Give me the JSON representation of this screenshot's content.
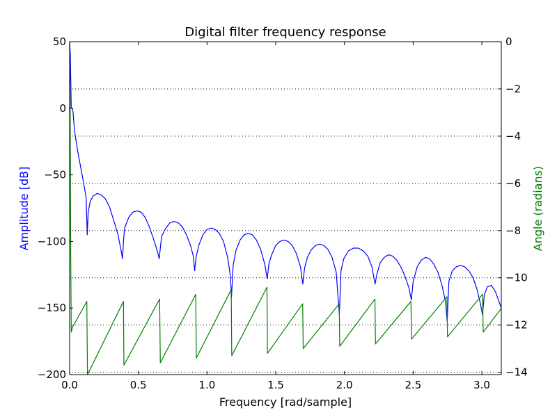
{
  "chart_data": {
    "type": "line",
    "title": "Digital filter frequency response",
    "xlabel": "Frequency [rad/sample]",
    "ylabel": "Amplitude [dB]",
    "ylabel_right": "Angle (radians)",
    "xlim": [
      0,
      3.1416
    ],
    "ylim": [
      -200,
      50
    ],
    "ylim_right": [
      -14.1,
      0
    ],
    "x_ticks": [
      "0.0",
      "0.5",
      "1.0",
      "1.5",
      "2.0",
      "2.5",
      "3.0"
    ],
    "y_ticks": [
      "50",
      "0",
      "−50",
      "−100",
      "−150",
      "−200"
    ],
    "y_ticks_right": [
      "0",
      "−2",
      "−4",
      "−6",
      "−8",
      "−10",
      "−12",
      "−14"
    ],
    "grid": "right-axis horizontal dotted",
    "colors": {
      "amplitude": "#0000ff",
      "angle": "#008000",
      "axes": "#000000",
      "grid": "#000000"
    },
    "series": [
      {
        "axis": "left",
        "color": "#0000ff",
        "x": [
          0.0,
          0.005,
          0.012,
          0.02,
          0.025,
          0.03,
          0.04,
          0.06,
          0.08,
          0.1,
          0.12,
          0.128,
          0.135,
          0.15,
          0.17,
          0.2,
          0.23,
          0.26,
          0.29,
          0.32,
          0.35,
          0.375,
          0.385,
          0.392,
          0.4,
          0.43,
          0.46,
          0.49,
          0.52,
          0.55,
          0.58,
          0.61,
          0.64,
          0.652,
          0.662,
          0.67,
          0.7,
          0.73,
          0.76,
          0.79,
          0.82,
          0.85,
          0.88,
          0.9,
          0.91,
          0.92,
          0.94,
          0.97,
          1.0,
          1.03,
          1.06,
          1.09,
          1.12,
          1.15,
          1.17,
          1.178,
          1.19,
          1.21,
          1.24,
          1.27,
          1.3,
          1.33,
          1.36,
          1.39,
          1.42,
          1.438,
          1.45,
          1.47,
          1.5,
          1.53,
          1.56,
          1.59,
          1.62,
          1.65,
          1.68,
          1.697,
          1.71,
          1.73,
          1.76,
          1.79,
          1.82,
          1.85,
          1.88,
          1.91,
          1.94,
          1.963,
          1.975,
          1.995,
          2.03,
          2.065,
          2.1,
          2.135,
          2.17,
          2.2,
          2.223,
          2.235,
          2.26,
          2.29,
          2.32,
          2.35,
          2.38,
          2.41,
          2.44,
          2.47,
          2.487,
          2.5,
          2.53,
          2.56,
          2.59,
          2.62,
          2.65,
          2.68,
          2.71,
          2.735,
          2.748,
          2.76,
          2.785,
          2.815,
          2.845,
          2.875,
          2.905,
          2.935,
          2.965,
          2.99,
          3.005,
          3.018,
          3.04,
          3.07,
          3.1,
          3.1416
        ],
        "values": [
          50,
          40,
          0,
          0,
          -3,
          -10,
          -20,
          -33,
          -44,
          -55,
          -67,
          -95,
          -78,
          -70,
          -66,
          -64,
          -65,
          -68,
          -74,
          -84,
          -94,
          -107,
          -113,
          -100,
          -90,
          -82,
          -78,
          -77,
          -78,
          -82,
          -89,
          -98,
          -108,
          -113,
          -103,
          -96,
          -90,
          -86,
          -85,
          -86,
          -89,
          -95,
          -103,
          -111,
          -122,
          -112,
          -103,
          -95,
          -91,
          -90,
          -91,
          -94,
          -100,
          -112,
          -126,
          -142,
          -118,
          -107,
          -99,
          -95,
          -94,
          -95,
          -99,
          -106,
          -117,
          -128,
          -117,
          -110,
          -103,
          -100,
          -99,
          -100,
          -103,
          -109,
          -119,
          -132,
          -120,
          -112,
          -106,
          -103,
          -102,
          -103,
          -106,
          -112,
          -123,
          -155,
          -122,
          -113,
          -107,
          -105,
          -105,
          -107,
          -111,
          -119,
          -132,
          -125,
          -116,
          -112,
          -110,
          -111,
          -114,
          -119,
          -126,
          -135,
          -144,
          -130,
          -119,
          -114,
          -112,
          -113,
          -117,
          -123,
          -133,
          -145,
          -160,
          -130,
          -122,
          -119,
          -118,
          -119,
          -122,
          -127,
          -136,
          -147,
          -155,
          -140,
          -134,
          -133,
          -138,
          -150
        ]
      },
      {
        "axis": "right",
        "color": "#008000",
        "x": [
          0.0,
          0.004,
          0.008,
          0.012,
          0.02,
          0.125,
          0.13,
          0.392,
          0.395,
          0.655,
          0.66,
          0.918,
          0.922,
          1.176,
          1.18,
          1.436,
          1.44,
          1.696,
          1.7,
          1.962,
          1.966,
          2.222,
          2.226,
          2.484,
          2.488,
          2.746,
          2.75,
          3.005,
          3.01,
          3.1416
        ],
        "values": [
          0,
          -3,
          -9,
          -12.3,
          -12.1,
          -11.0,
          -14.1,
          -11.0,
          -13.7,
          -10.9,
          -13.6,
          -10.7,
          -13.4,
          -10.5,
          -13.3,
          -10.4,
          -13.2,
          -11.1,
          -13.0,
          -11.1,
          -12.9,
          -10.9,
          -12.8,
          -11.0,
          -12.6,
          -10.8,
          -12.5,
          -10.7,
          -12.3,
          -11.3
        ]
      }
    ]
  }
}
